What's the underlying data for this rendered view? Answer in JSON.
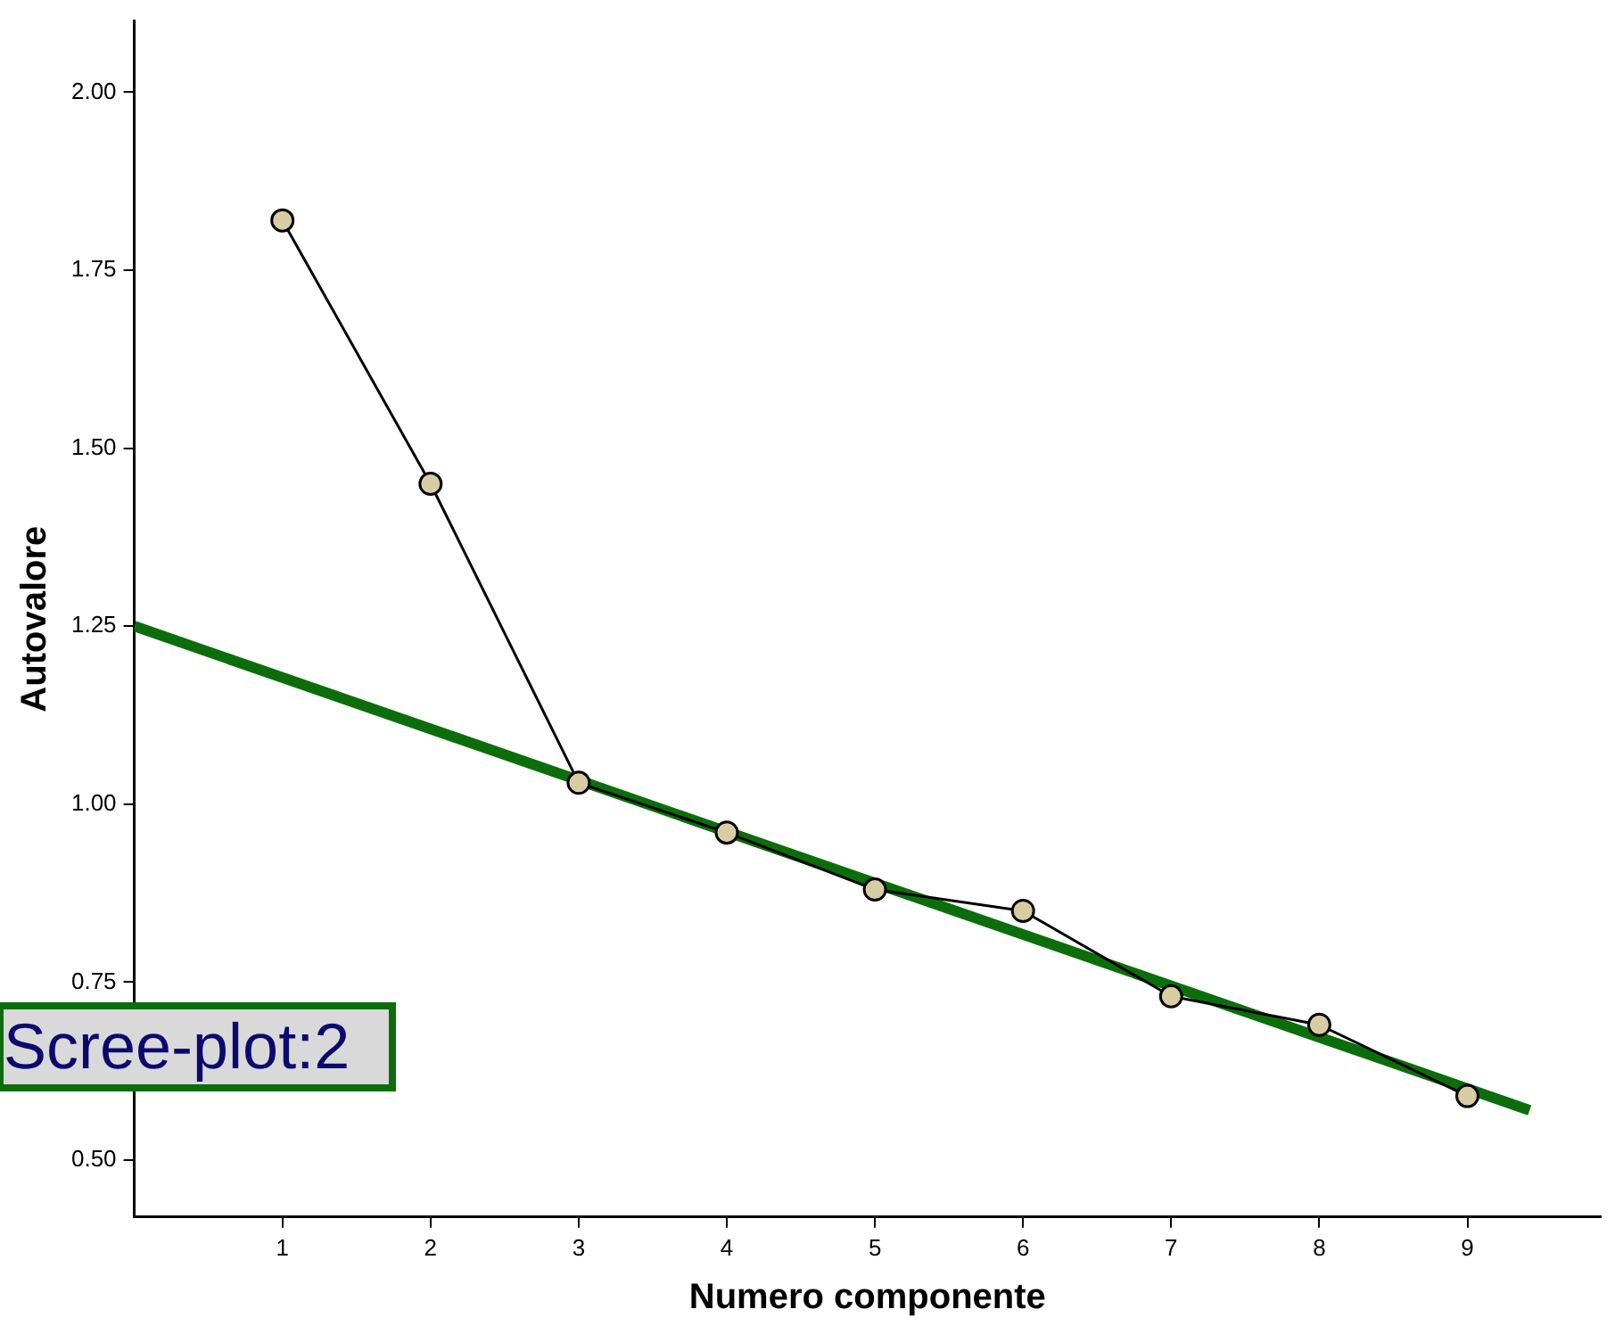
{
  "chart_data": {
    "type": "line",
    "xlabel": "Numero componente",
    "ylabel": "Autovalore",
    "x": [
      1,
      2,
      3,
      4,
      5,
      6,
      7,
      8,
      9
    ],
    "series": [
      {
        "color": "#000000",
        "marker": "circle",
        "values": [
          1.82,
          1.45,
          1.03,
          0.96,
          0.88,
          0.85,
          0.73,
          0.69,
          0.59
        ]
      },
      {
        "type": "line",
        "color": "#0b6e0b",
        "marker": "none",
        "x": [
          0,
          9.42
        ],
        "values": [
          1.25,
          0.57
        ]
      }
    ],
    "xlim": [
      0,
      9.9
    ],
    "ylim": [
      0.42,
      2.1
    ],
    "xticks": [
      1,
      2,
      3,
      4,
      5,
      6,
      7,
      8,
      9
    ],
    "yticks": [
      {
        "value": 0.5,
        "label": "0.50"
      },
      {
        "value": 0.75,
        "label": "0.75"
      },
      {
        "value": 1,
        "label": "1.00"
      },
      {
        "value": 1.25,
        "label": "1.25"
      },
      {
        "value": 1.5,
        "label": "1.50"
      },
      {
        "value": 1.75,
        "label": "1.75"
      },
      {
        "value": 2,
        "label": "2.00"
      }
    ],
    "grid": false,
    "legend": false,
    "line_style": "solid",
    "annotations": [
      "Scree-plot:2"
    ]
  }
}
